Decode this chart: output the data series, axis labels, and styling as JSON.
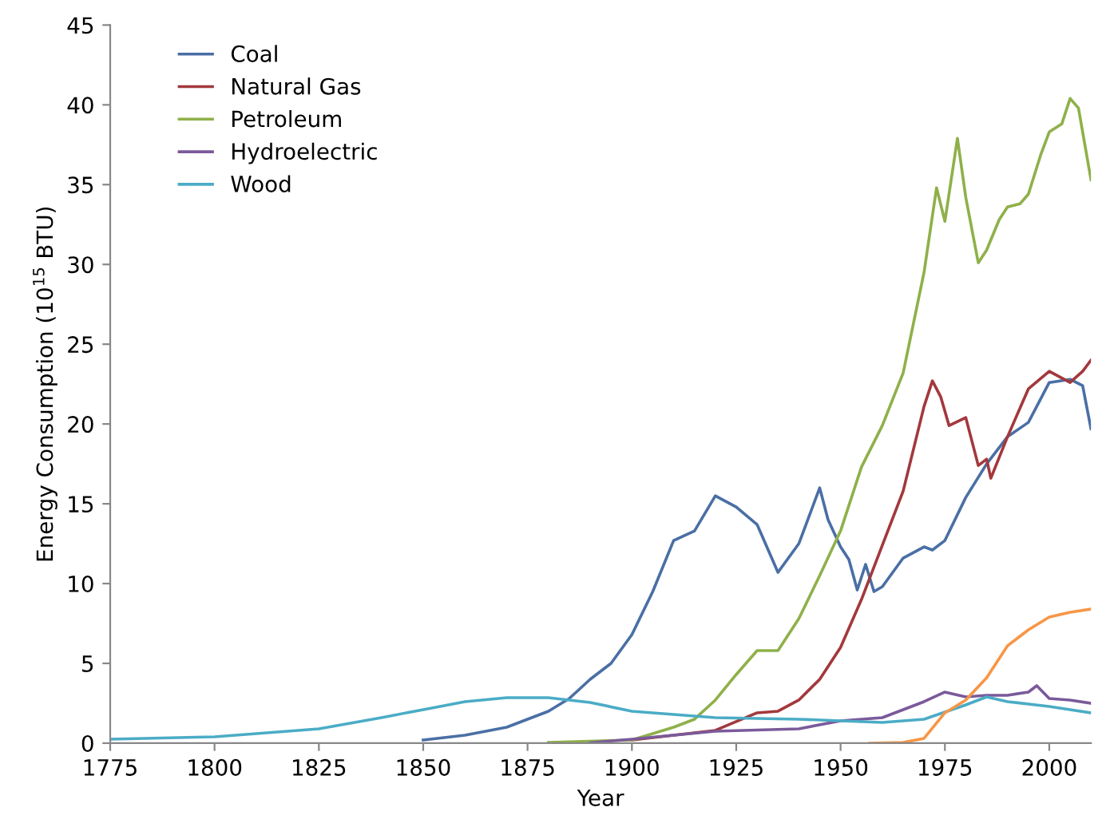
{
  "chart_data": {
    "type": "line",
    "xlabel": "Year",
    "ylabel": "Energy Consumption (10$^{15}$ BTU)",
    "legend": "top left",
    "grid": false,
    "xlim": [
      1775,
      2010
    ],
    "xticks": [
      1775,
      1800,
      1825,
      1850,
      1875,
      1900,
      1925,
      1950,
      1975,
      2000
    ],
    "ylim": [
      0,
      45
    ],
    "yticks": [
      0,
      5,
      10,
      15,
      20,
      25,
      30,
      35,
      40,
      45
    ],
    "series": [
      {
        "name": "Coal",
        "color": "#4a6fa5",
        "x": [
          1850,
          1860,
          1870,
          1880,
          1885,
          1890,
          1895,
          1900,
          1905,
          1910,
          1915,
          1920,
          1925,
          1930,
          1935,
          1940,
          1945,
          1947,
          1950,
          1952,
          1954,
          1956,
          1958,
          1960,
          1965,
          1970,
          1972,
          1975,
          1980,
          1985,
          1990,
          1995,
          2000,
          2005,
          2008,
          2010
        ],
        "values": [
          0.2,
          0.5,
          1.0,
          2.0,
          2.8,
          4.0,
          5.0,
          6.8,
          9.5,
          12.7,
          13.3,
          15.5,
          14.8,
          13.7,
          10.7,
          12.5,
          16.0,
          14.0,
          12.3,
          11.5,
          9.6,
          11.2,
          9.5,
          9.8,
          11.6,
          12.3,
          12.1,
          12.7,
          15.4,
          17.5,
          19.2,
          20.1,
          22.6,
          22.8,
          22.4,
          19.7
        ]
      },
      {
        "name": "Natural Gas",
        "color": "#a3383c",
        "x": [
          1900,
          1920,
          1930,
          1935,
          1940,
          1945,
          1950,
          1955,
          1960,
          1965,
          1970,
          1972,
          1974,
          1976,
          1980,
          1983,
          1985,
          1986,
          1990,
          1995,
          2000,
          2005,
          2008,
          2010
        ],
        "values": [
          0.2,
          0.8,
          1.9,
          2.0,
          2.7,
          4.0,
          6.0,
          9.0,
          12.4,
          15.8,
          21.1,
          22.7,
          21.7,
          19.9,
          20.4,
          17.4,
          17.8,
          16.6,
          19.2,
          22.2,
          23.3,
          22.6,
          23.3,
          24.0
        ]
      },
      {
        "name": "Petroleum",
        "color": "#8fb04a",
        "x": [
          1880,
          1900,
          1910,
          1915,
          1920,
          1925,
          1930,
          1935,
          1940,
          1945,
          1950,
          1955,
          1960,
          1965,
          1970,
          1973,
          1975,
          1978,
          1980,
          1983,
          1985,
          1988,
          1990,
          1993,
          1995,
          1998,
          2000,
          2003,
          2005,
          2007,
          2010
        ],
        "values": [
          0.05,
          0.2,
          1.0,
          1.5,
          2.7,
          4.3,
          5.8,
          5.8,
          7.8,
          10.5,
          13.3,
          17.3,
          19.9,
          23.2,
          29.5,
          34.8,
          32.7,
          37.9,
          34.2,
          30.1,
          30.9,
          32.8,
          33.6,
          33.8,
          34.4,
          36.9,
          38.3,
          38.8,
          40.4,
          39.8,
          35.3
        ]
      },
      {
        "name": "Hydroelectric",
        "color": "#7a5a9a",
        "x": [
          1890,
          1900,
          1920,
          1940,
          1950,
          1960,
          1970,
          1975,
          1980,
          1985,
          1990,
          1995,
          1997,
          2000,
          2005,
          2010
        ],
        "values": [
          0.02,
          0.25,
          0.75,
          0.9,
          1.4,
          1.6,
          2.6,
          3.2,
          2.9,
          3.0,
          3.0,
          3.2,
          3.6,
          2.8,
          2.7,
          2.5
        ]
      },
      {
        "name": "Wood",
        "color": "#4bacc6",
        "x": [
          1775,
          1800,
          1825,
          1840,
          1850,
          1860,
          1870,
          1880,
          1890,
          1900,
          1910,
          1920,
          1930,
          1940,
          1950,
          1960,
          1970,
          1980,
          1985,
          1990,
          2000,
          2005,
          2010
        ],
        "values": [
          0.25,
          0.4,
          0.9,
          1.6,
          2.1,
          2.6,
          2.85,
          2.85,
          2.55,
          2.0,
          1.8,
          1.6,
          1.55,
          1.5,
          1.4,
          1.3,
          1.5,
          2.4,
          2.9,
          2.6,
          2.3,
          2.1,
          1.9
        ]
      },
      {
        "color": "#f79646",
        "x": [
          1957,
          1965,
          1970,
          1975,
          1980,
          1985,
          1990,
          1995,
          2000,
          2005,
          2010
        ],
        "values": [
          0,
          0.04,
          0.3,
          1.9,
          2.7,
          4.1,
          6.1,
          7.1,
          7.9,
          8.2,
          8.4
        ]
      }
    ]
  }
}
